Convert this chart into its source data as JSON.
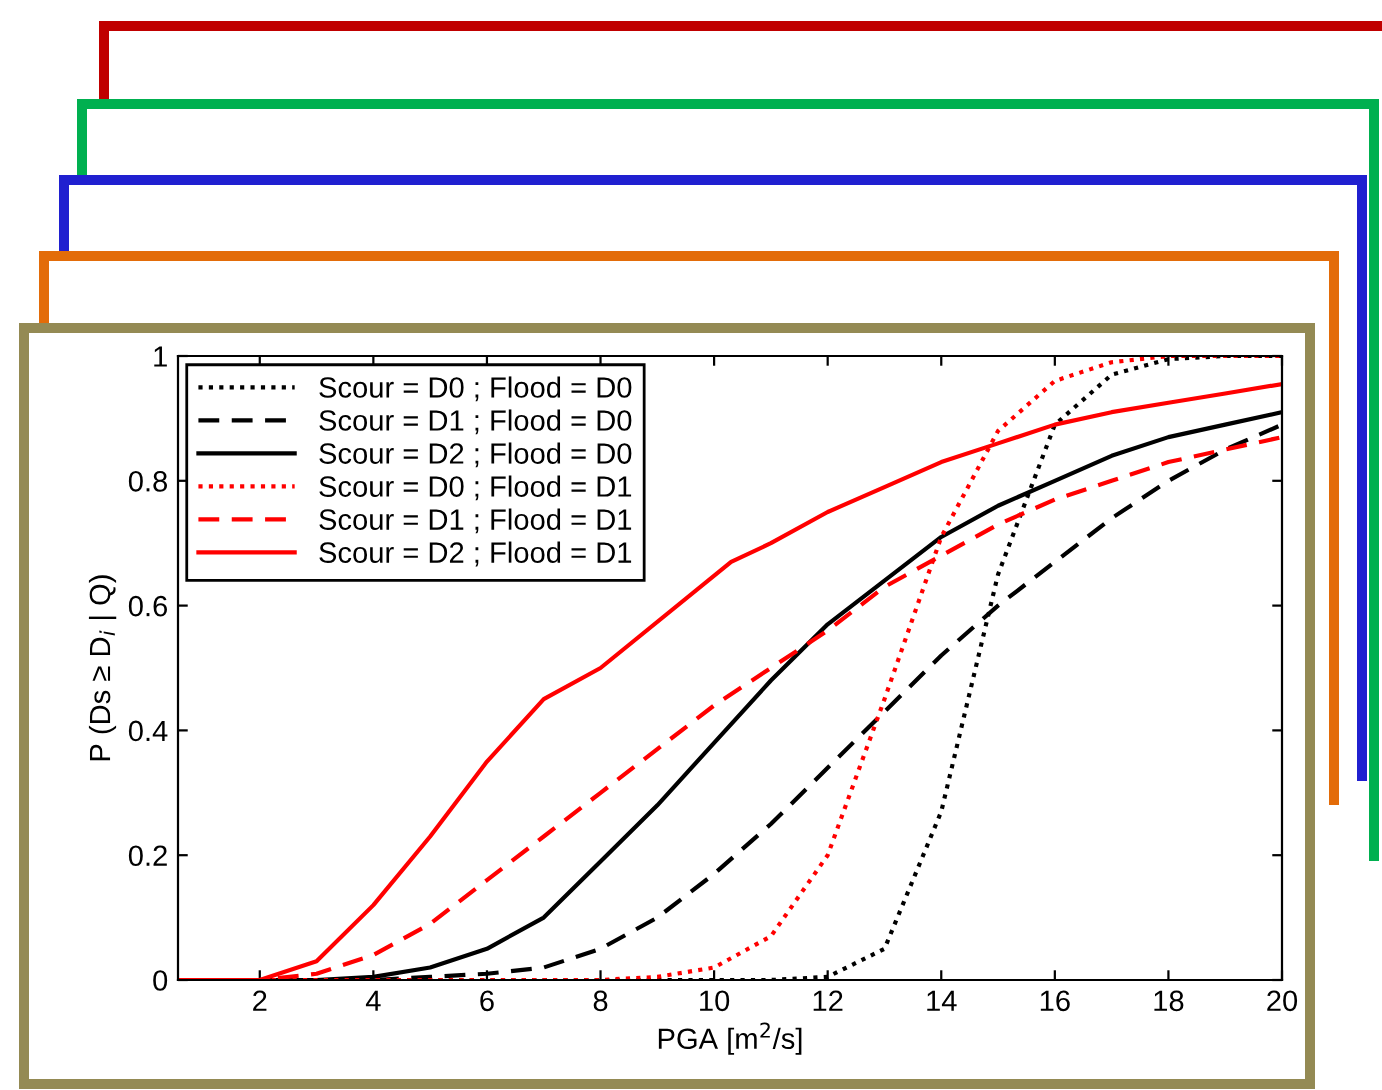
{
  "chart_data": {
    "type": "line",
    "xlabel": "PGA [m$^{2}$/s]",
    "ylabel": "P (Ds ≥ D$_{i}$ | Q)",
    "x": [
      0.56,
      1,
      2,
      3,
      4,
      5,
      6,
      7,
      8,
      9,
      10,
      11,
      12,
      13,
      14,
      15,
      16,
      17,
      18,
      19,
      20
    ],
    "xlim": [
      0.56,
      20
    ],
    "xticks": [
      2,
      4,
      6,
      8,
      10,
      12,
      14,
      16,
      18,
      20
    ],
    "ylim": [
      0,
      1
    ],
    "yticks": [
      0,
      0.2,
      0.4,
      0.6,
      0.8,
      1
    ],
    "grid": false,
    "legend": "top left",
    "marker": "none",
    "series": [
      {
        "name": "Scour = D0 ; Flood = D0",
        "color": "#000000",
        "line_style": "dotted",
        "values": [
          0,
          0,
          0,
          0,
          0,
          0,
          0,
          0,
          0,
          0,
          0,
          0,
          0.005,
          0.05,
          0.27,
          0.65,
          0.89,
          0.97,
          0.995,
          1,
          1
        ]
      },
      {
        "name": "Scour = D1 ; Flood = D0",
        "color": "#000000",
        "line_style": "dashed",
        "values": [
          0,
          0,
          0,
          0,
          0,
          0.005,
          0.01,
          0.02,
          0.05,
          0.1,
          0.17,
          0.25,
          0.34,
          0.43,
          0.52,
          0.6,
          0.67,
          0.74,
          0.8,
          0.85,
          0.89
        ]
      },
      {
        "name": "Scour = D2 ; Flood = D0",
        "color": "#000000",
        "line_style": "solid",
        "values": [
          0,
          0,
          0,
          0,
          0.005,
          0.02,
          0.05,
          0.1,
          0.19,
          0.28,
          0.38,
          0.48,
          0.57,
          0.64,
          0.71,
          0.76,
          0.8,
          0.84,
          0.87,
          0.89,
          0.91
        ]
      },
      {
        "name": "Scour = D0 ; Flood = D1",
        "color": "#ff0000",
        "line_style": "dotted",
        "values": [
          0,
          0,
          0,
          0,
          0,
          0,
          0,
          0,
          0,
          0.005,
          0.02,
          0.07,
          0.2,
          0.45,
          0.71,
          0.88,
          0.96,
          0.99,
          1,
          1,
          1
        ]
      },
      {
        "name": "Scour = D1 ; Flood = D1",
        "color": "#ff0000",
        "line_style": "dashed",
        "values": [
          0,
          0,
          0,
          0.01,
          0.04,
          0.09,
          0.16,
          0.23,
          0.3,
          0.37,
          0.44,
          0.5,
          0.56,
          0.63,
          0.68,
          0.73,
          0.77,
          0.8,
          0.83,
          0.85,
          0.87
        ]
      },
      {
        "name": "Scour = D2 ; Flood = D1",
        "color": "#ff0000",
        "line_style": "solid",
        "x": [
          0.56,
          1,
          2,
          3,
          4,
          5,
          6,
          7,
          8,
          10.3,
          11,
          12,
          13,
          14,
          15,
          16,
          17,
          18,
          19,
          20
        ],
        "values": [
          0,
          0,
          0,
          0.03,
          0.12,
          0.23,
          0.35,
          0.45,
          0.5,
          0.67,
          0.7,
          0.75,
          0.79,
          0.83,
          0.86,
          0.89,
          0.91,
          0.925,
          0.94,
          0.955
        ]
      }
    ]
  }
}
